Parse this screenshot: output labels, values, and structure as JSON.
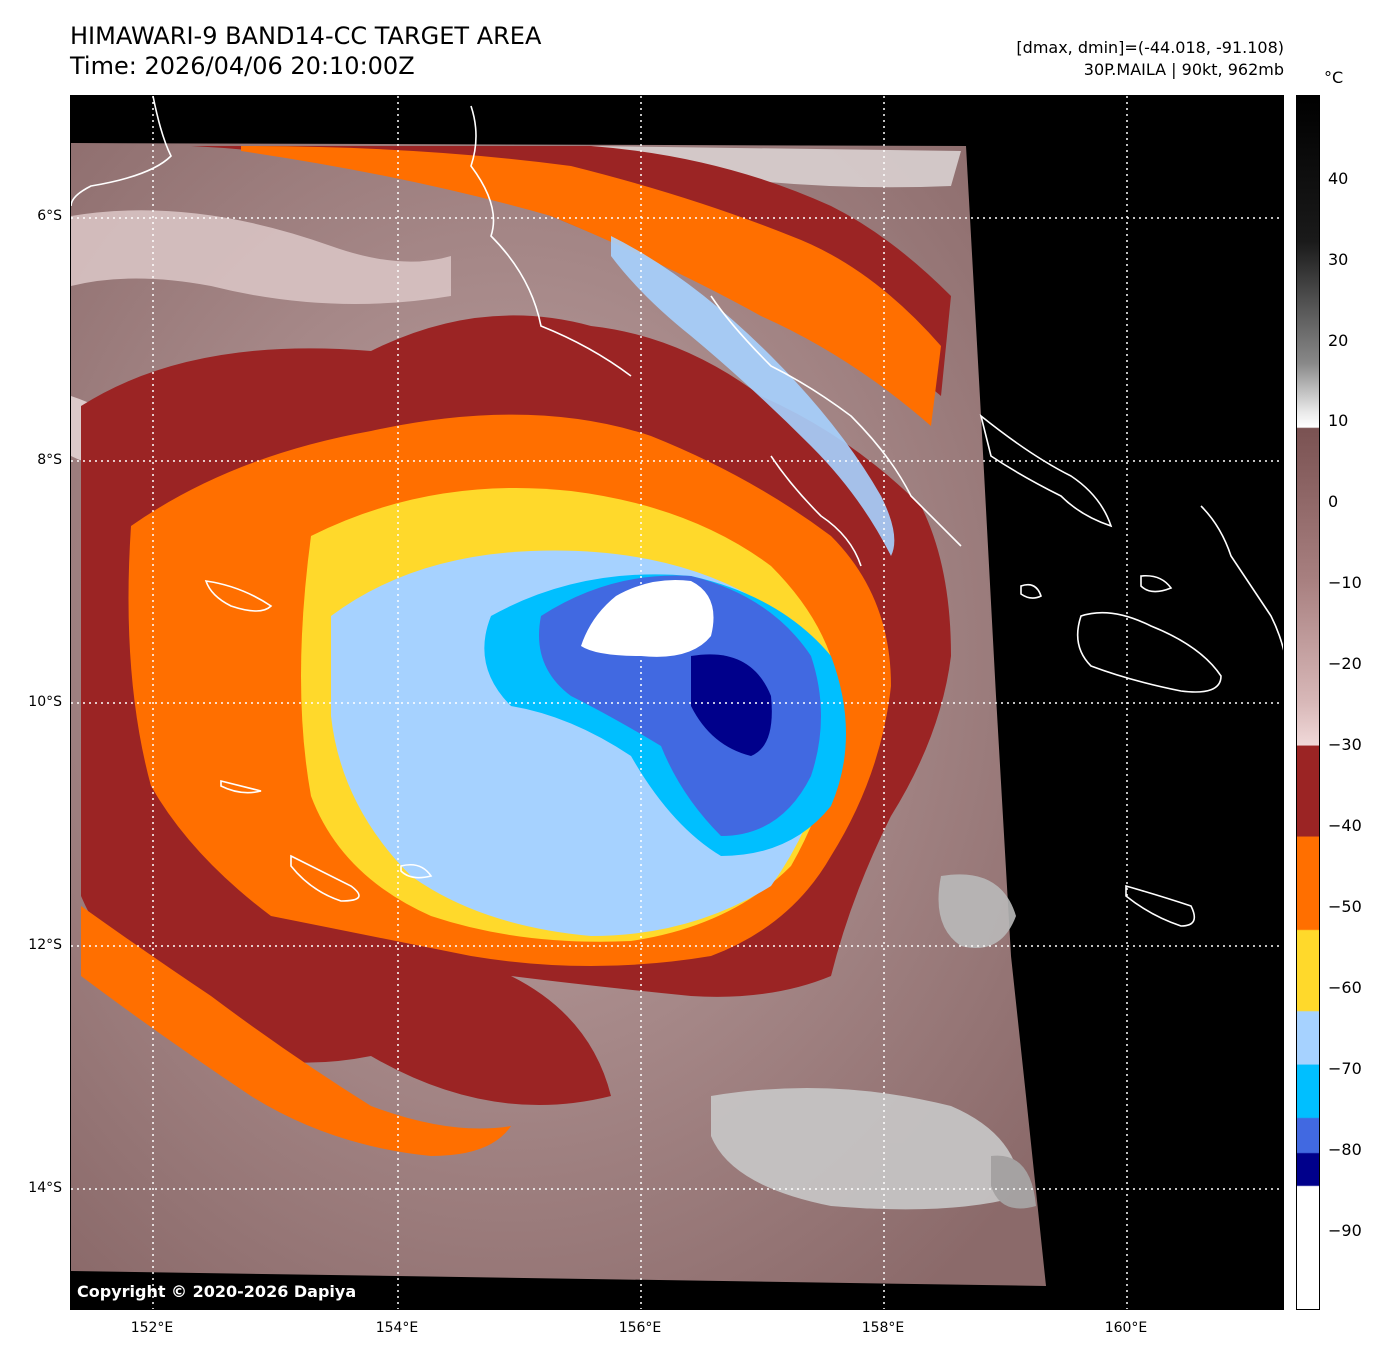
{
  "header": {
    "title_line1": "HIMAWARI-9 BAND14-CC TARGET AREA",
    "title_line2": "Time: 2026/04/06 20:10:00Z",
    "stats_line": "[dmax, dmin]=(-44.018, -91.108)",
    "storm_line": "30P.MAILA | 90kt, 962mb"
  },
  "map": {
    "copyright": "Copyright © 2020-2026 Dapiya",
    "lat_ticks": [
      "6°S",
      "8°S",
      "10°S",
      "12°S",
      "14°S"
    ],
    "lon_ticks": [
      "152°E",
      "154°E",
      "156°E",
      "158°E",
      "160°E"
    ],
    "layers": [
      "cloud-top-temperature-field",
      "coastlines",
      "gridlines"
    ]
  },
  "colorbar": {
    "unit": "°C",
    "labels": [
      "40",
      "30",
      "20",
      "10",
      "0",
      "−10",
      "−20",
      "−30",
      "−40",
      "−50",
      "−60",
      "−70",
      "−80",
      "−90"
    ],
    "colors": {
      "warm_top": "#000000",
      "warm_mid": "#ffffff",
      "brown": "#7a5252",
      "pink": "#f0d8d8",
      "maroon": "#9b2424",
      "orange": "#ff6f00",
      "yellow": "#ffd92b",
      "light_blue": "#a6d2ff",
      "cyan": "#00bfff",
      "blue": "#4169e1",
      "navy": "#00008b",
      "white": "#ffffff"
    }
  }
}
